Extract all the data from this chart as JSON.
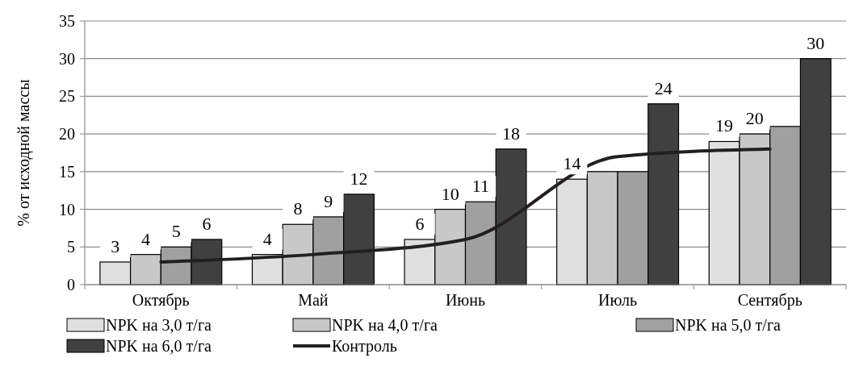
{
  "chart_data": {
    "type": "bar",
    "ylabel": "% от исходной массы",
    "categories": [
      "Октябрь",
      "Май",
      "Июнь",
      "Июль",
      "Сентябрь"
    ],
    "series": [
      {
        "name": "NPK  на 3,0 т/га",
        "color": "#e0e0e0",
        "values": [
          3,
          4,
          6,
          14,
          19
        ],
        "value_labels": [
          "3",
          "4",
          "6",
          "14",
          "19"
        ]
      },
      {
        "name": "NPK  на 4,0 т/га",
        "color": "#c8c8c8",
        "values": [
          4,
          8,
          10,
          15,
          20
        ],
        "value_labels": [
          "4",
          "8",
          "10",
          null,
          "20"
        ]
      },
      {
        "name": "NPK  на 5,0 т/га",
        "color": "#a0a0a0",
        "values": [
          5,
          9,
          11,
          15,
          21
        ],
        "value_labels": [
          "5",
          "9",
          "11",
          null,
          null
        ]
      },
      {
        "name": "NPK  на 6,0 т/га",
        "color": "#404040",
        "values": [
          6,
          12,
          18,
          24,
          30
        ],
        "value_labels": [
          "6",
          "12",
          "18",
          "24",
          "30"
        ]
      },
      {
        "name": "Контроль",
        "type": "line",
        "color": "#231f20",
        "values": [
          3,
          4,
          6,
          17,
          18
        ]
      }
    ],
    "ylim": [
      0,
      35
    ],
    "yticks": [
      0,
      5,
      10,
      15,
      20,
      25,
      30,
      35
    ],
    "grid": "y",
    "legend": "bottom",
    "marker": "none",
    "line_style": "solid"
  }
}
